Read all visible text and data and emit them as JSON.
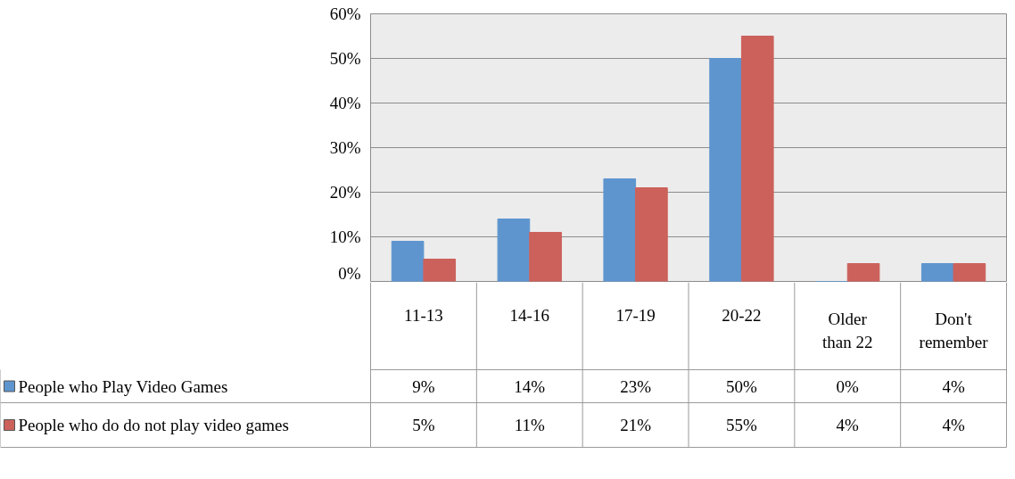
{
  "chart_data": {
    "type": "bar",
    "categories": [
      "11-13",
      "14-16",
      "17-19",
      "20-22",
      "Older than 22",
      "Don't remember"
    ],
    "series": [
      {
        "name": "People who Play Video Games",
        "color": "#5e95cf",
        "values": [
          9,
          14,
          23,
          50,
          0,
          4
        ],
        "value_labels": [
          "9%",
          "14%",
          "23%",
          "50%",
          "0%",
          "4%"
        ]
      },
      {
        "name": "People who do do not play video games",
        "color": "#cc615b",
        "values": [
          5,
          11,
          21,
          55,
          4,
          4
        ],
        "value_labels": [
          "5%",
          "11%",
          "21%",
          "55%",
          "4%",
          "4%"
        ]
      }
    ],
    "ylim": [
      0,
      60
    ],
    "yticks": [
      {
        "value": 0,
        "label": "0%"
      },
      {
        "value": 10,
        "label": "10%"
      },
      {
        "value": 20,
        "label": "20%"
      },
      {
        "value": 30,
        "label": "30%"
      },
      {
        "value": 40,
        "label": "40%"
      },
      {
        "value": 50,
        "label": "50%"
      },
      {
        "value": 60,
        "label": "60%"
      }
    ],
    "grid": "y",
    "legend": "bottom"
  }
}
